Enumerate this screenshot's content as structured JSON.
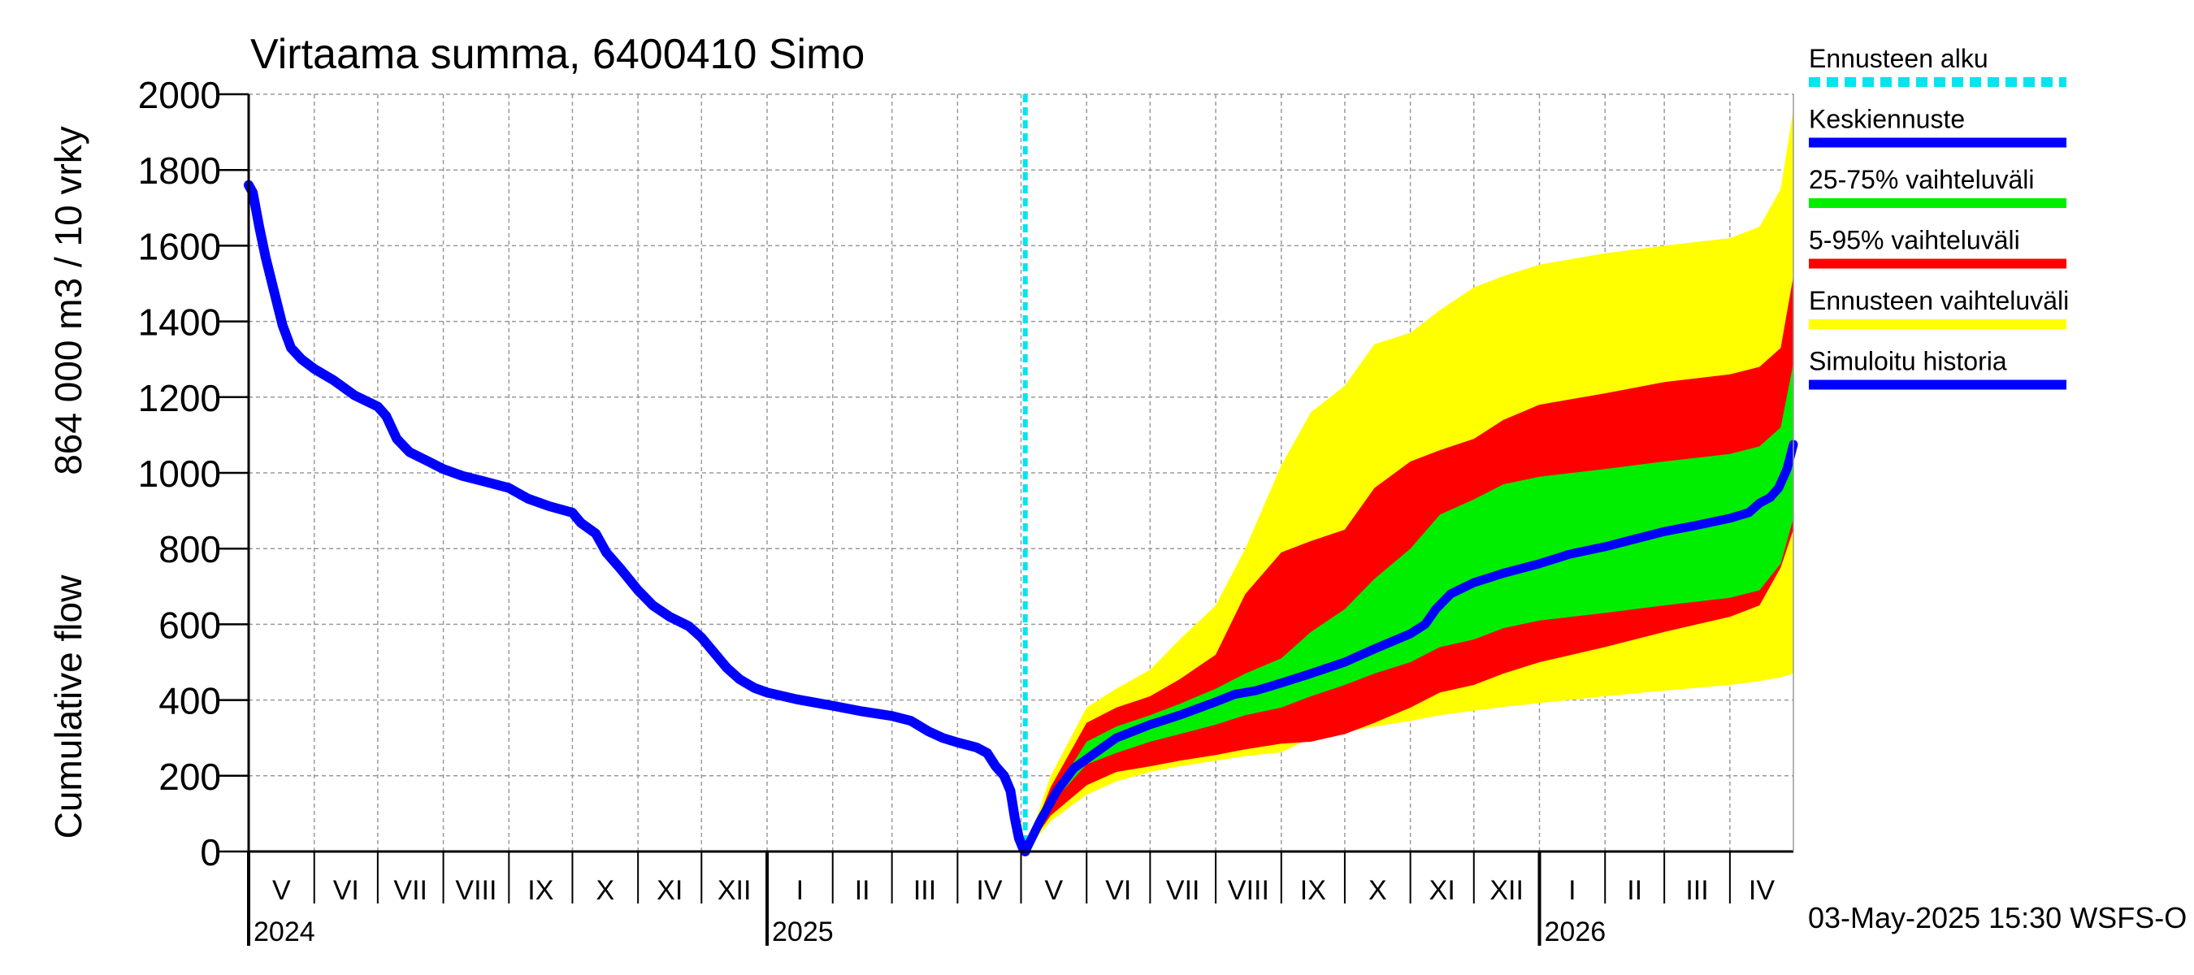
{
  "chart_data": {
    "type": "area",
    "title": "Virtaama summa, 6400410 Simo",
    "ylabel_lines": [
      "Cumulative flow",
      "864 000 m3 / 10 vrky"
    ],
    "ylim": [
      0,
      2000
    ],
    "yticks": [
      0,
      200,
      400,
      600,
      800,
      1000,
      1200,
      1400,
      1600,
      1800,
      2000
    ],
    "xlim": [
      "2024-05-01",
      "2026-05-01"
    ],
    "grid": true,
    "months": [
      {
        "label": "V",
        "start": "2024-05-01",
        "end": "2024-06-01"
      },
      {
        "label": "VI",
        "start": "2024-06-01",
        "end": "2024-07-01"
      },
      {
        "label": "VII",
        "start": "2024-07-01",
        "end": "2024-08-01"
      },
      {
        "label": "VIII",
        "start": "2024-08-01",
        "end": "2024-09-01"
      },
      {
        "label": "IX",
        "start": "2024-09-01",
        "end": "2024-10-01"
      },
      {
        "label": "X",
        "start": "2024-10-01",
        "end": "2024-11-01"
      },
      {
        "label": "XI",
        "start": "2024-11-01",
        "end": "2024-12-01"
      },
      {
        "label": "XII",
        "start": "2024-12-01",
        "end": "2025-01-01"
      },
      {
        "label": "I",
        "start": "2025-01-01",
        "end": "2025-02-01"
      },
      {
        "label": "II",
        "start": "2025-02-01",
        "end": "2025-03-01"
      },
      {
        "label": "III",
        "start": "2025-03-01",
        "end": "2025-04-01"
      },
      {
        "label": "IV",
        "start": "2025-04-01",
        "end": "2025-05-01"
      },
      {
        "label": "V",
        "start": "2025-05-01",
        "end": "2025-06-01"
      },
      {
        "label": "VI",
        "start": "2025-06-01",
        "end": "2025-07-01"
      },
      {
        "label": "VII",
        "start": "2025-07-01",
        "end": "2025-08-01"
      },
      {
        "label": "VIII",
        "start": "2025-08-01",
        "end": "2025-09-01"
      },
      {
        "label": "IX",
        "start": "2025-09-01",
        "end": "2025-10-01"
      },
      {
        "label": "X",
        "start": "2025-10-01",
        "end": "2025-11-01"
      },
      {
        "label": "XI",
        "start": "2025-11-01",
        "end": "2025-12-01"
      },
      {
        "label": "XII",
        "start": "2025-12-01",
        "end": "2026-01-01"
      },
      {
        "label": "I",
        "start": "2026-01-01",
        "end": "2026-02-01"
      },
      {
        "label": "II",
        "start": "2026-02-01",
        "end": "2026-03-01"
      },
      {
        "label": "III",
        "start": "2026-03-01",
        "end": "2026-04-01"
      },
      {
        "label": "IV",
        "start": "2026-04-01",
        "end": "2026-05-01"
      }
    ],
    "years": [
      {
        "label": "2024",
        "date": "2024-05-01"
      },
      {
        "label": "2025",
        "date": "2025-01-01"
      },
      {
        "label": "2026",
        "date": "2026-01-01"
      }
    ],
    "forecast_start": "2025-05-03",
    "legend_position": "right",
    "legend": [
      {
        "label": "Ennusteen alku",
        "color": "#00e5ee",
        "style": "dashed"
      },
      {
        "label": "Keskiennuste",
        "color": "#0000ff",
        "style": "solid"
      },
      {
        "label": "25-75% vaihteluväli",
        "color": "#00ee00",
        "style": "solid"
      },
      {
        "label": "5-95% vaihteluväli",
        "color": "#ff0000",
        "style": "solid"
      },
      {
        "label": "Ennusteen vaihteluväli",
        "color": "#ffff00",
        "style": "solid"
      },
      {
        "label": "Simuloitu historia",
        "color": "#0000ff",
        "style": "solid"
      }
    ],
    "history": {
      "name": "Simuloitu historia",
      "color": "#0000ff",
      "points": [
        [
          "2024-05-01",
          1760
        ],
        [
          "2024-05-03",
          1740
        ],
        [
          "2024-05-06",
          1650
        ],
        [
          "2024-05-09",
          1570
        ],
        [
          "2024-05-13",
          1480
        ],
        [
          "2024-05-17",
          1390
        ],
        [
          "2024-05-21",
          1330
        ],
        [
          "2024-05-26",
          1300
        ],
        [
          "2024-06-01",
          1275
        ],
        [
          "2024-06-10",
          1245
        ],
        [
          "2024-06-20",
          1205
        ],
        [
          "2024-07-01",
          1175
        ],
        [
          "2024-07-05",
          1150
        ],
        [
          "2024-07-10",
          1090
        ],
        [
          "2024-07-16",
          1055
        ],
        [
          "2024-07-25",
          1030
        ],
        [
          "2024-08-01",
          1010
        ],
        [
          "2024-08-10",
          992
        ],
        [
          "2024-08-20",
          978
        ],
        [
          "2024-09-01",
          960
        ],
        [
          "2024-09-10",
          932
        ],
        [
          "2024-09-20",
          912
        ],
        [
          "2024-10-01",
          895
        ],
        [
          "2024-10-05",
          868
        ],
        [
          "2024-10-12",
          840
        ],
        [
          "2024-10-17",
          790
        ],
        [
          "2024-10-24",
          745
        ],
        [
          "2024-11-01",
          690
        ],
        [
          "2024-11-08",
          650
        ],
        [
          "2024-11-16",
          620
        ],
        [
          "2024-11-25",
          595
        ],
        [
          "2024-12-01",
          565
        ],
        [
          "2024-12-07",
          525
        ],
        [
          "2024-12-13",
          485
        ],
        [
          "2024-12-19",
          455
        ],
        [
          "2024-12-26",
          432
        ],
        [
          "2025-01-01",
          420
        ],
        [
          "2025-01-15",
          402
        ],
        [
          "2025-02-01",
          385
        ],
        [
          "2025-02-15",
          370
        ],
        [
          "2025-03-01",
          358
        ],
        [
          "2025-03-10",
          345
        ],
        [
          "2025-03-18",
          318
        ],
        [
          "2025-03-25",
          300
        ],
        [
          "2025-04-01",
          288
        ],
        [
          "2025-04-10",
          275
        ],
        [
          "2025-04-15",
          260
        ],
        [
          "2025-04-19",
          225
        ],
        [
          "2025-04-23",
          200
        ],
        [
          "2025-04-26",
          160
        ],
        [
          "2025-04-28",
          90
        ],
        [
          "2025-04-30",
          35
        ],
        [
          "2025-05-02",
          8
        ],
        [
          "2025-05-03",
          0
        ]
      ]
    },
    "median_forecast": {
      "name": "Keskiennuste",
      "color": "#0000ff",
      "points": [
        [
          "2025-05-03",
          0
        ],
        [
          "2025-05-10",
          80
        ],
        [
          "2025-05-18",
          160
        ],
        [
          "2025-05-26",
          220
        ],
        [
          "2025-06-05",
          260
        ],
        [
          "2025-06-15",
          300
        ],
        [
          "2025-07-01",
          335
        ],
        [
          "2025-07-15",
          360
        ],
        [
          "2025-08-01",
          395
        ],
        [
          "2025-08-10",
          415
        ],
        [
          "2025-08-20",
          425
        ],
        [
          "2025-09-01",
          445
        ],
        [
          "2025-09-15",
          470
        ],
        [
          "2025-10-01",
          500
        ],
        [
          "2025-10-15",
          535
        ],
        [
          "2025-11-01",
          575
        ],
        [
          "2025-11-08",
          600
        ],
        [
          "2025-11-13",
          640
        ],
        [
          "2025-11-20",
          680
        ],
        [
          "2025-12-01",
          710
        ],
        [
          "2025-12-15",
          735
        ],
        [
          "2026-01-01",
          760
        ],
        [
          "2026-01-15",
          785
        ],
        [
          "2026-02-01",
          805
        ],
        [
          "2026-02-15",
          825
        ],
        [
          "2026-03-01",
          845
        ],
        [
          "2026-03-15",
          860
        ],
        [
          "2026-04-01",
          880
        ],
        [
          "2026-04-10",
          895
        ],
        [
          "2026-04-15",
          920
        ],
        [
          "2026-04-20",
          935
        ],
        [
          "2026-04-24",
          960
        ],
        [
          "2026-04-28",
          1010
        ],
        [
          "2026-05-01",
          1075
        ]
      ]
    },
    "bands": [
      {
        "name": "Ennusteen vaihteluväli",
        "color": "#ffff00",
        "x": [
          "2025-05-03",
          "2025-05-15",
          "2025-06-01",
          "2025-06-15",
          "2025-07-01",
          "2025-07-15",
          "2025-08-01",
          "2025-08-15",
          "2025-09-01",
          "2025-09-15",
          "2025-10-01",
          "2025-10-15",
          "2025-11-01",
          "2025-11-15",
          "2025-12-01",
          "2025-12-15",
          "2026-01-01",
          "2026-02-01",
          "2026-03-01",
          "2026-04-01",
          "2026-04-15",
          "2026-04-25",
          "2026-05-01"
        ],
        "lower": [
          0,
          80,
          150,
          185,
          210,
          225,
          240,
          252,
          262,
          300,
          315,
          330,
          345,
          360,
          372,
          382,
          392,
          410,
          425,
          440,
          450,
          460,
          470
        ],
        "upper": [
          0,
          200,
          380,
          430,
          480,
          560,
          650,
          800,
          1020,
          1160,
          1230,
          1340,
          1370,
          1430,
          1490,
          1520,
          1550,
          1580,
          1600,
          1620,
          1650,
          1750,
          1960
        ]
      },
      {
        "name": "5-95% vaihteluväli",
        "color": "#ff0000",
        "x": [
          "2025-05-03",
          "2025-05-15",
          "2025-06-01",
          "2025-06-15",
          "2025-07-01",
          "2025-07-15",
          "2025-08-01",
          "2025-08-15",
          "2025-09-01",
          "2025-09-15",
          "2025-10-01",
          "2025-10-15",
          "2025-11-01",
          "2025-11-15",
          "2025-12-01",
          "2025-12-15",
          "2026-01-01",
          "2026-02-01",
          "2026-03-01",
          "2026-04-01",
          "2026-04-15",
          "2026-04-25",
          "2026-05-01"
        ],
        "lower": [
          0,
          95,
          175,
          210,
          225,
          240,
          255,
          270,
          285,
          290,
          310,
          340,
          380,
          420,
          440,
          470,
          500,
          540,
          580,
          620,
          650,
          750,
          850
        ],
        "upper": [
          0,
          170,
          340,
          380,
          410,
          455,
          520,
          680,
          790,
          820,
          850,
          960,
          1030,
          1060,
          1090,
          1140,
          1180,
          1210,
          1240,
          1260,
          1280,
          1330,
          1520
        ]
      },
      {
        "name": "25-75% vaihteluväli",
        "color": "#00ee00",
        "x": [
          "2025-05-03",
          "2025-05-15",
          "2025-06-01",
          "2025-06-15",
          "2025-07-01",
          "2025-07-15",
          "2025-08-01",
          "2025-08-15",
          "2025-09-01",
          "2025-09-15",
          "2025-10-01",
          "2025-10-15",
          "2025-11-01",
          "2025-11-15",
          "2025-12-01",
          "2025-12-15",
          "2026-01-01",
          "2026-02-01",
          "2026-03-01",
          "2026-04-01",
          "2026-04-15",
          "2026-04-25",
          "2026-05-01"
        ],
        "lower": [
          0,
          125,
          230,
          260,
          290,
          310,
          335,
          360,
          380,
          410,
          440,
          470,
          500,
          540,
          560,
          590,
          610,
          630,
          650,
          670,
          690,
          760,
          880
        ],
        "upper": [
          0,
          140,
          290,
          330,
          360,
          390,
          430,
          470,
          510,
          580,
          640,
          720,
          800,
          890,
          930,
          970,
          990,
          1010,
          1030,
          1050,
          1070,
          1120,
          1290
        ]
      }
    ],
    "footer": "03-May-2025 15:30 WSFS-O"
  }
}
